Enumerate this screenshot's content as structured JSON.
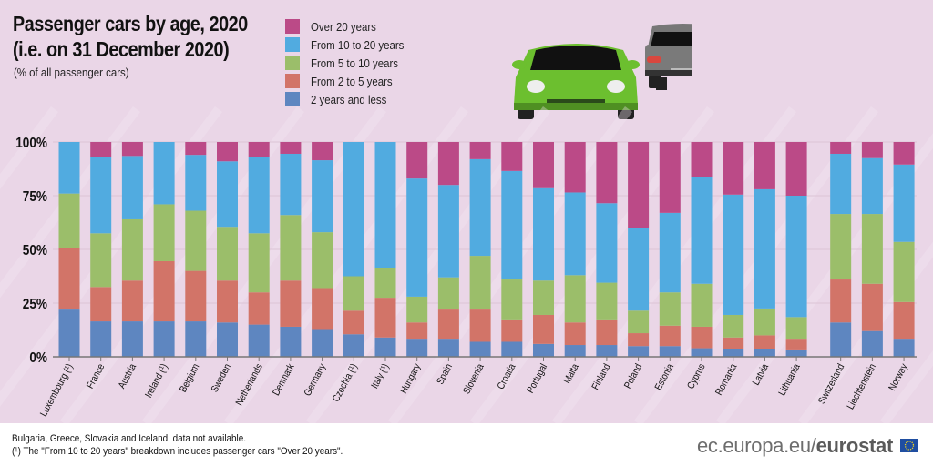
{
  "title_line1": "Passenger cars by age, 2020",
  "title_line2": "(i.e. on 31 December 2020)",
  "subtitle": "(% of all passenger cars)",
  "footnotes": [
    "Bulgaria, Greece, Slovakia and Iceland: data not available.",
    "(¹) The \"From 10 to 20 years\" breakdown includes passenger cars \"Over 20 years\"."
  ],
  "brand": {
    "prefix": "ec.europa.eu/",
    "name": "eurostat"
  },
  "icons": [
    "green-car-front-icon",
    "grey-car-rear-icon",
    "eu-flag-icon"
  ],
  "chart_data": {
    "type": "bar",
    "stacked": true,
    "title": "Passenger cars by age, 2020",
    "ylabel": "",
    "ylim": [
      0,
      100
    ],
    "yticks": [
      "0%",
      "25%",
      "50%",
      "75%",
      "100%"
    ],
    "grid": true,
    "legend_position": "top",
    "categories": [
      "Luxembourg (¹)",
      "France",
      "Austria",
      "Ireland (¹)",
      "Belgium",
      "Sweden",
      "Netherlands",
      "Denmark",
      "Germany",
      "Czechia (¹)",
      "Italy (¹)",
      "Hungary",
      "Spain",
      "Slovenia",
      "Croatia",
      "Portugal",
      "Malta",
      "Finland",
      "Poland",
      "Estonia",
      "Cyprus",
      "Romania",
      "Latvia",
      "Lithuania",
      "Switzerland",
      "Liechtenstein",
      "Norway"
    ],
    "series": [
      {
        "name": "2 years and less",
        "color": "#5e86c0",
        "values": [
          22,
          16.5,
          16.5,
          16.5,
          16.5,
          16,
          15,
          14,
          12.5,
          10.5,
          9,
          8,
          8,
          7,
          7,
          6,
          5.5,
          5.5,
          5,
          5,
          4,
          3.5,
          3.5,
          3,
          16,
          12,
          8
        ]
      },
      {
        "name": "From 2 to 5 years",
        "color": "#d27468",
        "values": [
          28.5,
          16,
          19,
          28,
          23.5,
          19.5,
          15,
          21.5,
          19.5,
          11,
          18.5,
          8,
          14,
          15,
          10,
          13.5,
          10.5,
          11.5,
          6,
          9.5,
          10,
          5.5,
          6.5,
          5,
          20,
          22,
          17.5
        ]
      },
      {
        "name": "From 5 to 10 years",
        "color": "#9bbe6a",
        "values": [
          25.5,
          25,
          28.5,
          26.5,
          28,
          25,
          27.5,
          30.5,
          26,
          16,
          14,
          12,
          15,
          25,
          19,
          16,
          22,
          17.5,
          10.5,
          15.5,
          20,
          10.5,
          12.5,
          10.5,
          30.5,
          32.5,
          28
        ]
      },
      {
        "name": "From 10 to 20 years",
        "color": "#51abe0",
        "values": [
          24,
          35.5,
          29.5,
          29,
          26,
          30.5,
          35.5,
          28.5,
          33.5,
          62.5,
          58.5,
          55,
          43,
          45,
          50.5,
          43,
          38.5,
          37,
          38.5,
          37,
          49.5,
          56,
          55.5,
          56.5,
          28,
          26,
          36
        ]
      },
      {
        "name": "Over 20 years",
        "color": "#bb4a87",
        "values": [
          0,
          7,
          6.5,
          0,
          6,
          9,
          7,
          5.5,
          8.5,
          0,
          0,
          17,
          20,
          8,
          13.5,
          21.5,
          23.5,
          28.5,
          40,
          33,
          16.5,
          24.5,
          22,
          25,
          5.5,
          7.5,
          10.5
        ]
      }
    ],
    "legend_order": [
      "Over 20 years",
      "From 10 to 20 years",
      "From 5 to 10 years",
      "From 2 to 5 years",
      "2 years and less"
    ]
  }
}
